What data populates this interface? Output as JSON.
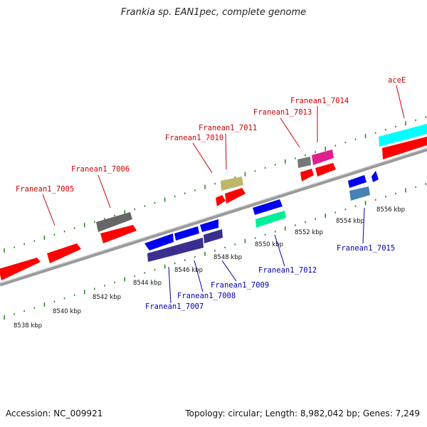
{
  "title": "Frankia sp. EAN1pec, complete genome",
  "footer": {
    "accession": "Accession: NC_009921",
    "topology": "Topology: circular; Length: 8,982,042 bp; Genes: 7,249"
  },
  "scale_labels": [
    "8538 kbp",
    "8540 kbp",
    "8542 kbp",
    "8544 kbp",
    "8546 kbp",
    "8548 kbp",
    "8550 kbp",
    "8552 kbp",
    "8554 kbp",
    "8556 kbp"
  ],
  "gene_labels": {
    "forward": [
      "Franean1_7005",
      "Franean1_7006",
      "Franean1_7010",
      "Franean1_7011",
      "Franean1_7013",
      "Franean1_7014",
      "aceE"
    ],
    "reverse": [
      "Franean1_7007",
      "Franean1_7008",
      "Franean1_7009",
      "Franean1_7012",
      "Franean1_7015"
    ]
  },
  "colors": {
    "forward_label": "#cc0000",
    "reverse_label": "#0000aa",
    "tick": "#2a8a2a",
    "backbone": "#888888"
  }
}
